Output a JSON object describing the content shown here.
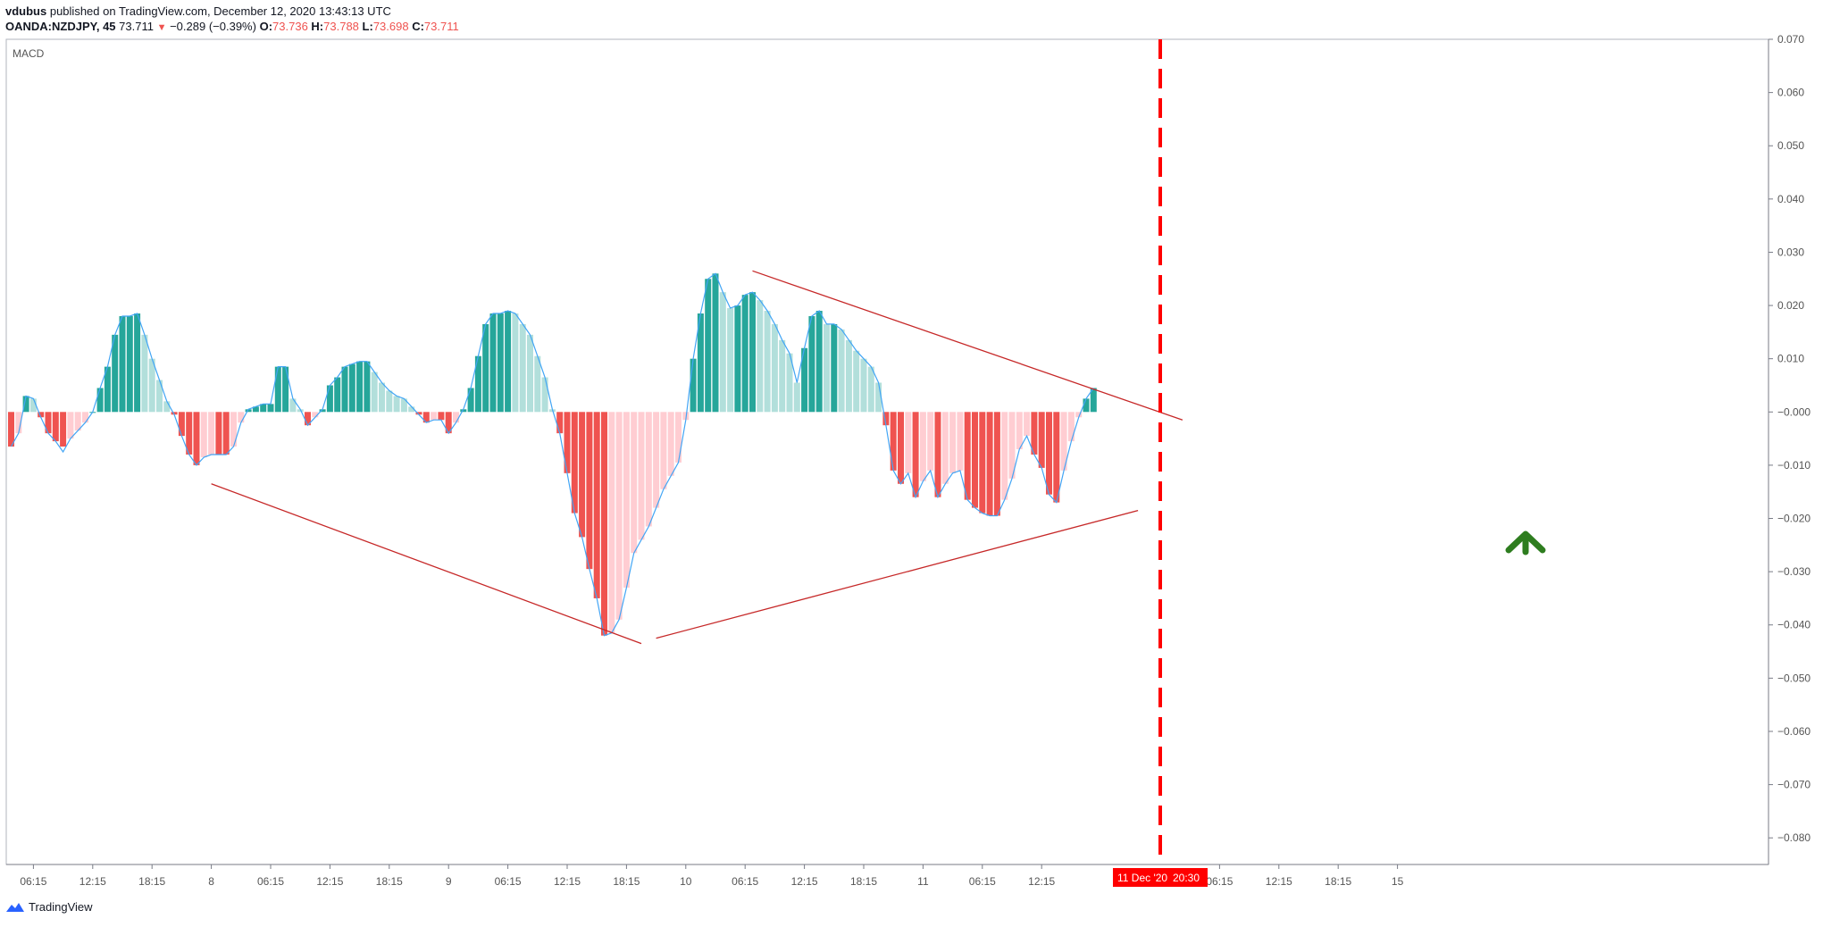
{
  "header": {
    "author": "vdubus",
    "published_text": " published on TradingView.com, December 12, 2020 13:43:13 UTC",
    "symbol": "OANDA:NZDJPY, 45",
    "price": "73.711",
    "change": "−0.289 (−0.39%)",
    "o_label": "O:",
    "o_value": "73.736",
    "h_label": "H:",
    "h_value": "73.788",
    "l_label": "L:",
    "l_value": "73.698",
    "c_label": "C:",
    "c_value": "73.711"
  },
  "indicator_label": "MACD",
  "footer": {
    "brand": "TradingView"
  },
  "crosshair": {
    "date_label": "11 Dec '20",
    "time_label": "20:30"
  },
  "colors": {
    "up_strong": "#26a69a",
    "up_weak": "#b2dfdb",
    "down_strong": "#ef5350",
    "down_weak": "#ffcdd2",
    "macd_line": "#42a5f5",
    "trend_line": "#c62828",
    "crosshair": "#ff0000",
    "arrow": "#2e7d1f"
  },
  "chart_data": {
    "type": "bar",
    "title": "MACD",
    "ylim": [
      -0.085,
      0.07
    ],
    "y_ticks": [
      "0.070",
      "0.060",
      "0.050",
      "0.040",
      "0.030",
      "0.020",
      "0.010",
      "−0.000",
      "−0.010",
      "−0.020",
      "−0.030",
      "−0.040",
      "−0.050",
      "−0.060",
      "−0.070",
      "−0.080"
    ],
    "y_tick_values": [
      0.07,
      0.06,
      0.05,
      0.04,
      0.03,
      0.02,
      0.01,
      0,
      -0.01,
      -0.02,
      -0.03,
      -0.04,
      -0.05,
      -0.06,
      -0.07,
      -0.08
    ],
    "x_ticks": [
      "06:15",
      "12:15",
      "18:15",
      "8",
      "06:15",
      "12:15",
      "18:15",
      "9",
      "06:15",
      "12:15",
      "18:15",
      "10",
      "06:15",
      "12:15",
      "18:15",
      "11",
      "06:15",
      "12:15",
      "06:15",
      "12:15",
      "18:15",
      "15"
    ],
    "x_tick_bars": [
      3,
      11,
      19,
      27,
      35,
      43,
      51,
      59,
      67,
      75,
      83,
      91,
      99,
      107,
      115,
      123,
      131,
      139,
      163,
      171,
      179,
      187
    ],
    "histogram": [
      -0.0065,
      -0.004,
      0.003,
      0.0025,
      -0.001,
      -0.004,
      -0.0055,
      -0.0065,
      -0.005,
      -0.0035,
      -0.002,
      0.0,
      0.0045,
      0.0085,
      0.0145,
      0.018,
      0.018,
      0.0185,
      0.0145,
      0.01,
      0.006,
      0.002,
      -0.0005,
      -0.0045,
      -0.008,
      -0.01,
      -0.0085,
      -0.008,
      -0.008,
      -0.008,
      -0.0065,
      -0.002,
      0.0005,
      0.001,
      0.0015,
      0.0015,
      0.0085,
      0.0085,
      0.0025,
      0.0005,
      -0.0025,
      -0.001,
      0.0005,
      0.005,
      0.0065,
      0.0085,
      0.009,
      0.0095,
      0.0095,
      0.0075,
      0.0055,
      0.004,
      0.003,
      0.0025,
      0.001,
      -0.0005,
      -0.002,
      -0.0015,
      -0.0015,
      -0.004,
      -0.002,
      0.0005,
      0.0045,
      0.0105,
      0.0165,
      0.0185,
      0.0185,
      0.019,
      0.0185,
      0.0165,
      0.0145,
      0.0105,
      0.0065,
      0.0005,
      -0.004,
      -0.0115,
      -0.019,
      -0.0235,
      -0.0295,
      -0.035,
      -0.042,
      -0.0415,
      -0.039,
      -0.033,
      -0.0265,
      -0.024,
      -0.0215,
      -0.018,
      -0.0145,
      -0.012,
      -0.0095,
      -0.0015,
      0.01,
      0.0185,
      0.025,
      0.026,
      0.0225,
      0.0195,
      0.02,
      0.022,
      0.0225,
      0.021,
      0.019,
      0.0165,
      0.0135,
      0.011,
      0.0055,
      0.012,
      0.018,
      0.019,
      0.0165,
      0.0165,
      0.0155,
      0.0135,
      0.0115,
      0.01,
      0.0085,
      0.0055,
      -0.0025,
      -0.011,
      -0.0135,
      -0.0115,
      -0.016,
      -0.013,
      -0.011,
      -0.016,
      -0.0135,
      -0.0115,
      -0.011,
      -0.0165,
      -0.018,
      -0.019,
      -0.0195,
      -0.0195,
      -0.0165,
      -0.0125,
      -0.007,
      -0.0045,
      -0.008,
      -0.0105,
      -0.0155,
      -0.017,
      -0.011,
      -0.0055,
      -0.001,
      0.0025,
      0.0045
    ],
    "macd_line": [
      -0.0065,
      -0.004,
      0.003,
      0.0025,
      -0.001,
      -0.004,
      -0.0055,
      -0.0075,
      -0.005,
      -0.0035,
      -0.002,
      0.0,
      0.0045,
      0.0085,
      0.0145,
      0.018,
      0.018,
      0.0185,
      0.0145,
      0.01,
      0.006,
      0.002,
      -0.0005,
      -0.0045,
      -0.008,
      -0.01,
      -0.0085,
      -0.008,
      -0.008,
      -0.008,
      -0.0065,
      -0.002,
      0.0005,
      0.001,
      0.0015,
      0.0015,
      0.0085,
      0.0085,
      0.0025,
      0.0005,
      -0.0025,
      -0.001,
      0.0005,
      0.005,
      0.0065,
      0.0085,
      0.009,
      0.0095,
      0.0095,
      0.0075,
      0.0055,
      0.004,
      0.003,
      0.0025,
      0.001,
      -0.0005,
      -0.002,
      -0.0015,
      -0.0015,
      -0.004,
      -0.002,
      0.0005,
      0.0045,
      0.0105,
      0.0165,
      0.0185,
      0.0185,
      0.019,
      0.0185,
      0.0165,
      0.0145,
      0.0105,
      0.0065,
      0.0005,
      -0.004,
      -0.0115,
      -0.019,
      -0.0235,
      -0.0295,
      -0.035,
      -0.042,
      -0.0415,
      -0.039,
      -0.033,
      -0.0265,
      -0.024,
      -0.0215,
      -0.018,
      -0.0145,
      -0.012,
      -0.0095,
      -0.0015,
      0.01,
      0.0185,
      0.025,
      0.026,
      0.0225,
      0.0195,
      0.02,
      0.022,
      0.0225,
      0.021,
      0.019,
      0.0165,
      0.0135,
      0.011,
      0.0055,
      0.012,
      0.018,
      0.019,
      0.0165,
      0.0165,
      0.0155,
      0.0135,
      0.0115,
      0.01,
      0.0085,
      0.0055,
      -0.0025,
      -0.011,
      -0.0135,
      -0.0115,
      -0.016,
      -0.013,
      -0.011,
      -0.016,
      -0.0135,
      -0.0115,
      -0.011,
      -0.0165,
      -0.018,
      -0.019,
      -0.0195,
      -0.0195,
      -0.0165,
      -0.0125,
      -0.007,
      -0.0045,
      -0.008,
      -0.0105,
      -0.0155,
      -0.017,
      -0.011,
      -0.0055,
      -0.001,
      0.0025,
      0.0045
    ],
    "trend_lines": [
      {
        "from": [
          27,
          -0.0135
        ],
        "to": [
          85,
          -0.0435
        ]
      },
      {
        "from": [
          87,
          -0.0425
        ],
        "to": [
          152,
          -0.0185
        ]
      },
      {
        "from": [
          100,
          0.0265
        ],
        "to": [
          158,
          -0.0015
        ]
      }
    ],
    "crosshair_bar": 155
  }
}
